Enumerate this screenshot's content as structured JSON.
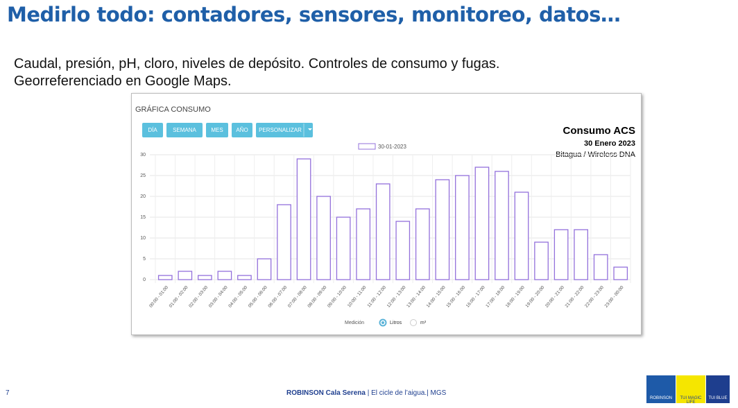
{
  "title": "Medirlo todo: contadores, sensores, monitoreo, datos…",
  "body": [
    "Caudal, presión, pH, cloro, niveles de depósito. Controles de consumo y fugas.",
    "Georreferenciado en Google Maps."
  ],
  "footer": {
    "page": "7",
    "brand": "ROBINSON Cala Serena",
    "text": "| El cicle de l’aigua.| MGS",
    "logos": [
      "ROBINSON",
      "TUI MAGIC LIFE",
      "TUI BLUE"
    ]
  },
  "chart_data": {
    "type": "bar",
    "title": "GRÁFICA CONSUMO",
    "buttons": [
      "DÍA",
      "SEMANA",
      "MES",
      "AÑO",
      "PERSONALIZAR"
    ],
    "annotations": [
      "Consumo ACS",
      "30 Enero 2023",
      "Bitagua / Wireless DNA"
    ],
    "categories": [
      "00:00 - 01:00",
      "01:00 - 02:00",
      "02:00 - 03:00",
      "03:00 - 04:00",
      "04:00 - 05:00",
      "05:00 - 06:00",
      "06:00 - 07:00",
      "07:00 - 08:00",
      "08:00 - 09:00",
      "09:00 - 10:00",
      "10:00 - 11:00",
      "11:00 - 12:00",
      "12:00 - 13:00",
      "13:00 - 14:00",
      "14:00 - 15:00",
      "15:00 - 16:00",
      "16:00 - 17:00",
      "17:00 - 18:00",
      "18:00 - 19:00",
      "19:00 - 20:00",
      "20:00 - 21:00",
      "21:00 - 22:00",
      "22:00 - 23:00",
      "23:00 - 00:00"
    ],
    "series": [
      {
        "name": "30-01-2023",
        "color": "#9370db",
        "values": [
          1,
          2,
          1,
          2,
          1,
          5,
          18,
          29,
          20,
          15,
          17,
          23,
          14,
          17,
          24,
          25,
          27,
          26,
          21,
          9,
          12,
          12,
          6,
          3
        ]
      }
    ],
    "ylim": [
      0,
      30
    ],
    "yticks": [
      0,
      5,
      10,
      15,
      20,
      25,
      30
    ],
    "grid": true,
    "radio": {
      "label": "Medición",
      "options": [
        "Litros",
        "m³"
      ]
    }
  }
}
